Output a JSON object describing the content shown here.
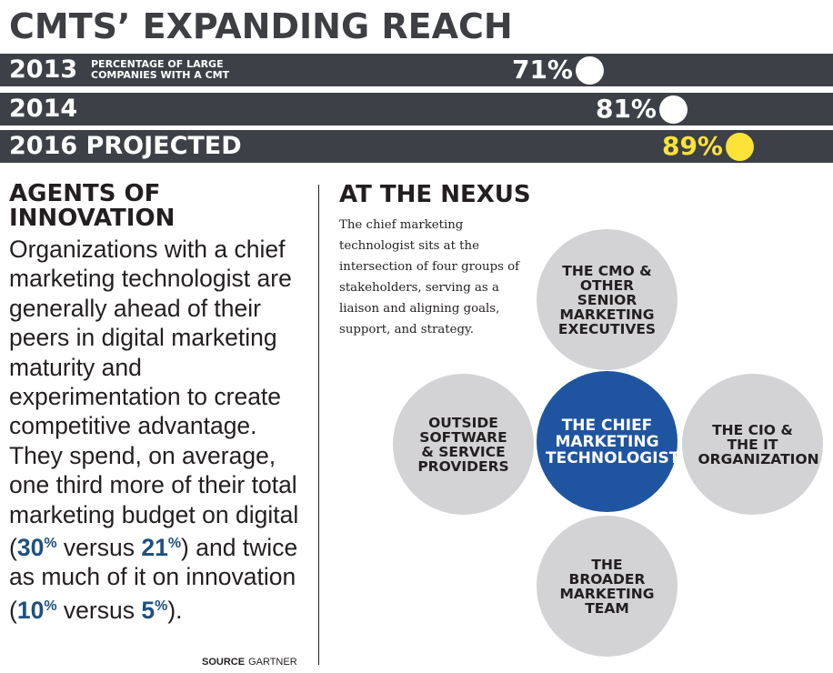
{
  "title": "CMTS’ EXPANDING REACH",
  "chart_data": {
    "type": "bar",
    "subtitle": "PERCENTAGE OF LARGE COMPANIES WITH A CMT",
    "categories": [
      "2013",
      "2014",
      "2016 PROJECTED"
    ],
    "values": [
      71,
      81,
      89
    ],
    "value_labels": [
      "71%",
      "81%",
      "89%"
    ],
    "value_colors": [
      "#ffffff",
      "#ffffff",
      "#fde23a"
    ],
    "bar_color": "#3d4147",
    "xlim": [
      0,
      100
    ]
  },
  "left": {
    "heading": "AGENTS OF INNOVATION",
    "body_1": "Organizations with a chief marketing technologist are generally ahead of their peers in digital marketing maturity and experimentation to create competitive advantage. They spend, on average, one third more of their total marketing budget on digital (",
    "n1": "30",
    "body_2": " versus ",
    "n2": "21",
    "body_3": ") and twice as much of it on innovation (",
    "n3": "10",
    "body_4": " versus ",
    "n4": "5",
    "body_5": ").",
    "pct": "%",
    "source_label": "SOURCE",
    "source_value": "GARTNER"
  },
  "nexus": {
    "title": "AT THE NEXUS",
    "description": "The chief marketing technologist sits at the intersection of four groups of stakeholders, serving as a liaison and aligning goals, support, and strategy.",
    "center": "THE CHIEF MARKETING TECHNOLOGIST",
    "top": "THE CMO & OTHER SENIOR MARKETING EXECUTIVES",
    "left": "OUTSIDE SOFTWARE & SERVICE PROVIDERS",
    "right": "THE CIO & THE IT ORGANIZATION",
    "bottom": "THE BROADER MARKETING TEAM",
    "colors": {
      "outer": "#d3d3d5",
      "center": "#1f55a0"
    }
  }
}
